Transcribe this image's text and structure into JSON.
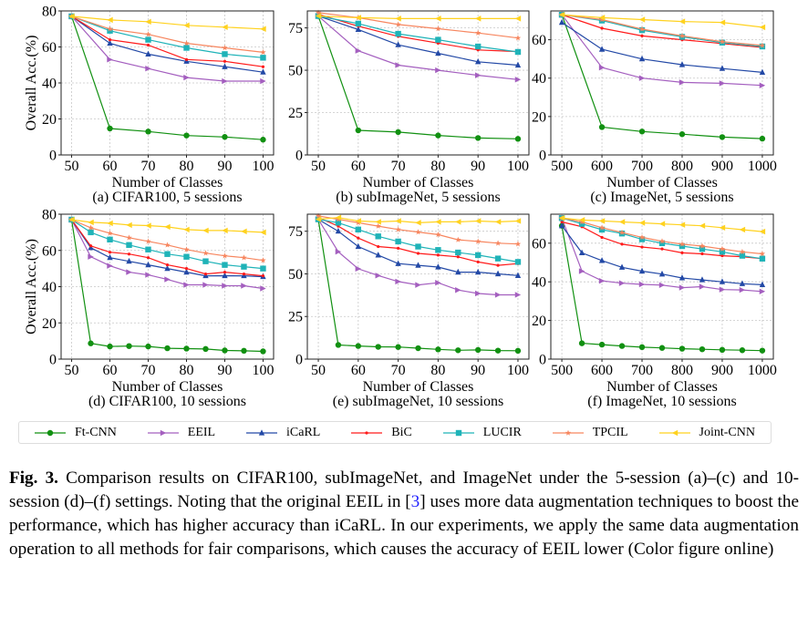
{
  "series_styles": [
    {
      "name": "Ft-CNN",
      "color": "#119011",
      "marker": "circle"
    },
    {
      "name": "EEIL",
      "color": "#a45fbf",
      "marker": "triangle-right"
    },
    {
      "name": "iCaRL",
      "color": "#2349a6",
      "marker": "triangle-up"
    },
    {
      "name": "BiC",
      "color": "#ff1a1a",
      "marker": "dot"
    },
    {
      "name": "LUCIR",
      "color": "#1fb3b8",
      "marker": "square"
    },
    {
      "name": "TPCIL",
      "color": "#f7865f",
      "marker": "star"
    },
    {
      "name": "Joint-CNN",
      "color": "#ffd21f",
      "marker": "triangle-left"
    }
  ],
  "chart_data": [
    {
      "type": "line",
      "title": "(a) CIFAR100, 5 sessions",
      "xlabel": "Number of Classes",
      "ylabel": "Overall Acc.(%)",
      "grid": true,
      "x": [
        50,
        60,
        70,
        80,
        90,
        100
      ],
      "xticks": [
        50,
        60,
        70,
        80,
        90,
        100
      ],
      "ylim": [
        0,
        80
      ],
      "yticks": [
        0,
        20,
        40,
        60,
        80
      ],
      "series": [
        {
          "name": "Ft-CNN",
          "values": [
            77,
            14.7,
            13,
            10.8,
            10,
            8.5
          ]
        },
        {
          "name": "EEIL",
          "values": [
            77,
            53,
            48,
            43,
            41,
            41
          ]
        },
        {
          "name": "iCaRL",
          "values": [
            77,
            62,
            56,
            52,
            49,
            46
          ]
        },
        {
          "name": "BiC",
          "values": [
            77,
            64,
            61,
            53,
            52,
            49
          ]
        },
        {
          "name": "LUCIR",
          "values": [
            77,
            69,
            64,
            59.5,
            56,
            54
          ]
        },
        {
          "name": "TPCIL",
          "values": [
            77,
            70,
            67,
            62,
            59.5,
            57
          ]
        },
        {
          "name": "Joint-CNN",
          "values": [
            77,
            75,
            74,
            72,
            71,
            70
          ]
        }
      ]
    },
    {
      "type": "line",
      "title": "(b) subImageNet, 5 sessions",
      "xlabel": "Number of Classes",
      "ylabel": "",
      "grid": true,
      "x": [
        50,
        60,
        70,
        80,
        90,
        100
      ],
      "xticks": [
        50,
        60,
        70,
        80,
        90,
        100
      ],
      "ylim": [
        0,
        85
      ],
      "yticks": [
        0,
        25,
        50,
        75
      ],
      "series": [
        {
          "name": "Ft-CNN",
          "values": [
            82,
            14.5,
            13.5,
            11.5,
            10,
            9.5
          ]
        },
        {
          "name": "EEIL",
          "values": [
            82,
            61.5,
            53,
            50,
            47,
            44.5
          ]
        },
        {
          "name": "iCaRL",
          "values": [
            82,
            74,
            65,
            60,
            55,
            53
          ]
        },
        {
          "name": "BiC",
          "values": [
            83,
            76,
            70,
            66,
            62,
            61
          ]
        },
        {
          "name": "LUCIR",
          "values": [
            82,
            77.5,
            71.5,
            68,
            64,
            60.8
          ]
        },
        {
          "name": "TPCIL",
          "values": [
            84,
            81,
            77,
            74.5,
            72,
            69
          ]
        },
        {
          "name": "Joint-CNN",
          "values": [
            82,
            81,
            80.5,
            80.5,
            80.5,
            80.5
          ]
        }
      ]
    },
    {
      "type": "line",
      "title": "(c) ImageNet, 5 sessions",
      "xlabel": "Number of Classes",
      "ylabel": "",
      "grid": true,
      "x": [
        500,
        600,
        700,
        800,
        900,
        1000
      ],
      "xticks": [
        500,
        600,
        700,
        800,
        900,
        1000
      ],
      "ylim": [
        0,
        75
      ],
      "yticks": [
        0,
        20,
        40,
        60
      ],
      "series": [
        {
          "name": "Ft-CNN",
          "values": [
            73,
            14.5,
            12.2,
            10.8,
            9.3,
            8.5
          ]
        },
        {
          "name": "EEIL",
          "values": [
            73,
            45.5,
            40,
            37.8,
            37.3,
            36.2
          ]
        },
        {
          "name": "iCaRL",
          "values": [
            69,
            55,
            50,
            47,
            45,
            43
          ]
        },
        {
          "name": "BiC",
          "values": [
            73,
            66,
            62,
            60,
            58,
            56
          ]
        },
        {
          "name": "LUCIR",
          "values": [
            73,
            70,
            65,
            61.5,
            58.5,
            56.5
          ]
        },
        {
          "name": "TPCIL",
          "values": [
            73,
            70.5,
            65.5,
            62,
            59,
            57
          ]
        },
        {
          "name": "Joint-CNN",
          "values": [
            73,
            71.5,
            70.5,
            69.5,
            69,
            66.5
          ]
        }
      ]
    },
    {
      "type": "line",
      "title": "(d) CIFAR100, 10 sessions",
      "xlabel": "Number of Classes",
      "ylabel": "Overall Acc.(%)",
      "grid": true,
      "x": [
        50,
        55,
        60,
        65,
        70,
        75,
        80,
        85,
        90,
        95,
        100
      ],
      "xticks": [
        50,
        60,
        70,
        80,
        90,
        100
      ],
      "ylim": [
        0,
        80
      ],
      "yticks": [
        0,
        20,
        40,
        60,
        80
      ],
      "series": [
        {
          "name": "Ft-CNN",
          "values": [
            77,
            8.7,
            7,
            7.2,
            7,
            6,
            5.8,
            5.6,
            4.8,
            4.6,
            4.3
          ]
        },
        {
          "name": "EEIL",
          "values": [
            77,
            56.5,
            51.5,
            48,
            46.5,
            44,
            41,
            41,
            40.5,
            40.5,
            39
          ]
        },
        {
          "name": "iCaRL",
          "values": [
            77,
            61.5,
            56,
            54,
            52,
            50,
            48,
            46,
            46,
            46,
            45.5
          ]
        },
        {
          "name": "BiC",
          "values": [
            77,
            62.5,
            59,
            58,
            56,
            52,
            50,
            47,
            48,
            47,
            46
          ]
        },
        {
          "name": "LUCIR",
          "values": [
            77,
            70,
            66,
            63,
            60.5,
            58,
            56.5,
            54,
            52,
            51,
            50
          ]
        },
        {
          "name": "TPCIL",
          "values": [
            77,
            72.5,
            69.5,
            67,
            65,
            63,
            60.5,
            58.5,
            57,
            56,
            54.5
          ]
        },
        {
          "name": "Joint-CNN",
          "values": [
            77,
            75.5,
            75,
            74,
            73.7,
            73,
            71.5,
            71,
            71,
            70.5,
            70
          ]
        }
      ]
    },
    {
      "type": "line",
      "title": "(e) subImageNet, 10 sessions",
      "xlabel": "Number of Classes",
      "ylabel": "",
      "grid": true,
      "x": [
        50,
        55,
        60,
        65,
        70,
        75,
        80,
        85,
        90,
        95,
        100
      ],
      "xticks": [
        50,
        60,
        70,
        80,
        90,
        100
      ],
      "ylim": [
        0,
        85
      ],
      "yticks": [
        0,
        25,
        50,
        75
      ],
      "series": [
        {
          "name": "Ft-CNN",
          "values": [
            82,
            8.3,
            7.7,
            7.2,
            7.1,
            6.4,
            5.7,
            5.2,
            5.4,
            5,
            4.9
          ]
        },
        {
          "name": "EEIL",
          "values": [
            82,
            63,
            53,
            49,
            45.5,
            43.5,
            44.8,
            40.5,
            38.5,
            37.7,
            37.7
          ]
        },
        {
          "name": "iCaRL",
          "values": [
            82,
            75,
            66,
            61,
            56,
            55,
            54,
            51,
            51,
            50,
            49
          ]
        },
        {
          "name": "BiC",
          "values": [
            83,
            78,
            71,
            66,
            65,
            62,
            61,
            60,
            57,
            55,
            56
          ]
        },
        {
          "name": "LUCIR",
          "values": [
            82,
            80,
            76,
            72,
            69,
            66,
            64,
            62.5,
            61,
            59,
            57
          ]
        },
        {
          "name": "TPCIL",
          "values": [
            84,
            82,
            80,
            78,
            76,
            74.5,
            73,
            70,
            69,
            68,
            67.5
          ]
        },
        {
          "name": "Joint-CNN",
          "values": [
            82,
            83,
            81,
            80.5,
            81,
            80,
            80.5,
            80.5,
            81,
            80.5,
            81
          ]
        }
      ]
    },
    {
      "type": "line",
      "title": "(f) ImageNet, 10 sessions",
      "xlabel": "Number of Classes",
      "ylabel": "",
      "grid": true,
      "x": [
        500,
        550,
        600,
        650,
        700,
        750,
        800,
        850,
        900,
        950,
        1000
      ],
      "xticks": [
        500,
        600,
        700,
        800,
        900,
        1000
      ],
      "ylim": [
        0,
        75
      ],
      "yticks": [
        0,
        20,
        40,
        60
      ],
      "series": [
        {
          "name": "Ft-CNN",
          "values": [
            69,
            8.2,
            7.5,
            6.8,
            6.2,
            5.8,
            5.4,
            5.1,
            4.8,
            4.6,
            4.4
          ]
        },
        {
          "name": "EEIL",
          "values": [
            73,
            45.5,
            40.5,
            39.3,
            38.7,
            38.3,
            37,
            37.5,
            36,
            35.8,
            35
          ]
        },
        {
          "name": "iCaRL",
          "values": [
            69,
            55,
            51,
            47.5,
            45.5,
            44,
            42,
            41,
            40,
            39,
            38.5
          ]
        },
        {
          "name": "BiC",
          "values": [
            71,
            68.5,
            63,
            59.5,
            58,
            57,
            55,
            54.5,
            53.5,
            53,
            52
          ]
        },
        {
          "name": "LUCIR",
          "values": [
            73,
            70,
            67,
            65,
            62,
            60,
            58.5,
            57,
            55.5,
            53.5,
            52
          ]
        },
        {
          "name": "TPCIL",
          "values": [
            73,
            71,
            68,
            65.5,
            63,
            61,
            59.5,
            58.5,
            57,
            55.5,
            54.5
          ]
        },
        {
          "name": "Joint-CNN",
          "values": [
            73,
            72,
            71.5,
            71,
            70.5,
            70,
            69.5,
            69,
            68,
            67,
            66
          ]
        }
      ]
    }
  ],
  "legend": {
    "placement": "bottom",
    "items": [
      "Ft-CNN",
      "EEIL",
      "iCaRL",
      "BiC",
      "LUCIR",
      "TPCIL",
      "Joint-CNN"
    ]
  },
  "caption": {
    "label": "Fig. 3.",
    "text_before": " Comparison results on CIFAR100, subImageNet, and ImageNet under the 5-session (a)–(c) and 10-session (d)–(f) settings. Noting that the original EEIL in [",
    "ref": "3",
    "text_after": "] uses more data augmentation techniques to boost the performance, which has higher accuracy than iCaRL. In our experiments, we apply the same data augmentation operation to all methods for fair comparisons, which causes the accuracy of EEIL lower (Color figure online)"
  }
}
